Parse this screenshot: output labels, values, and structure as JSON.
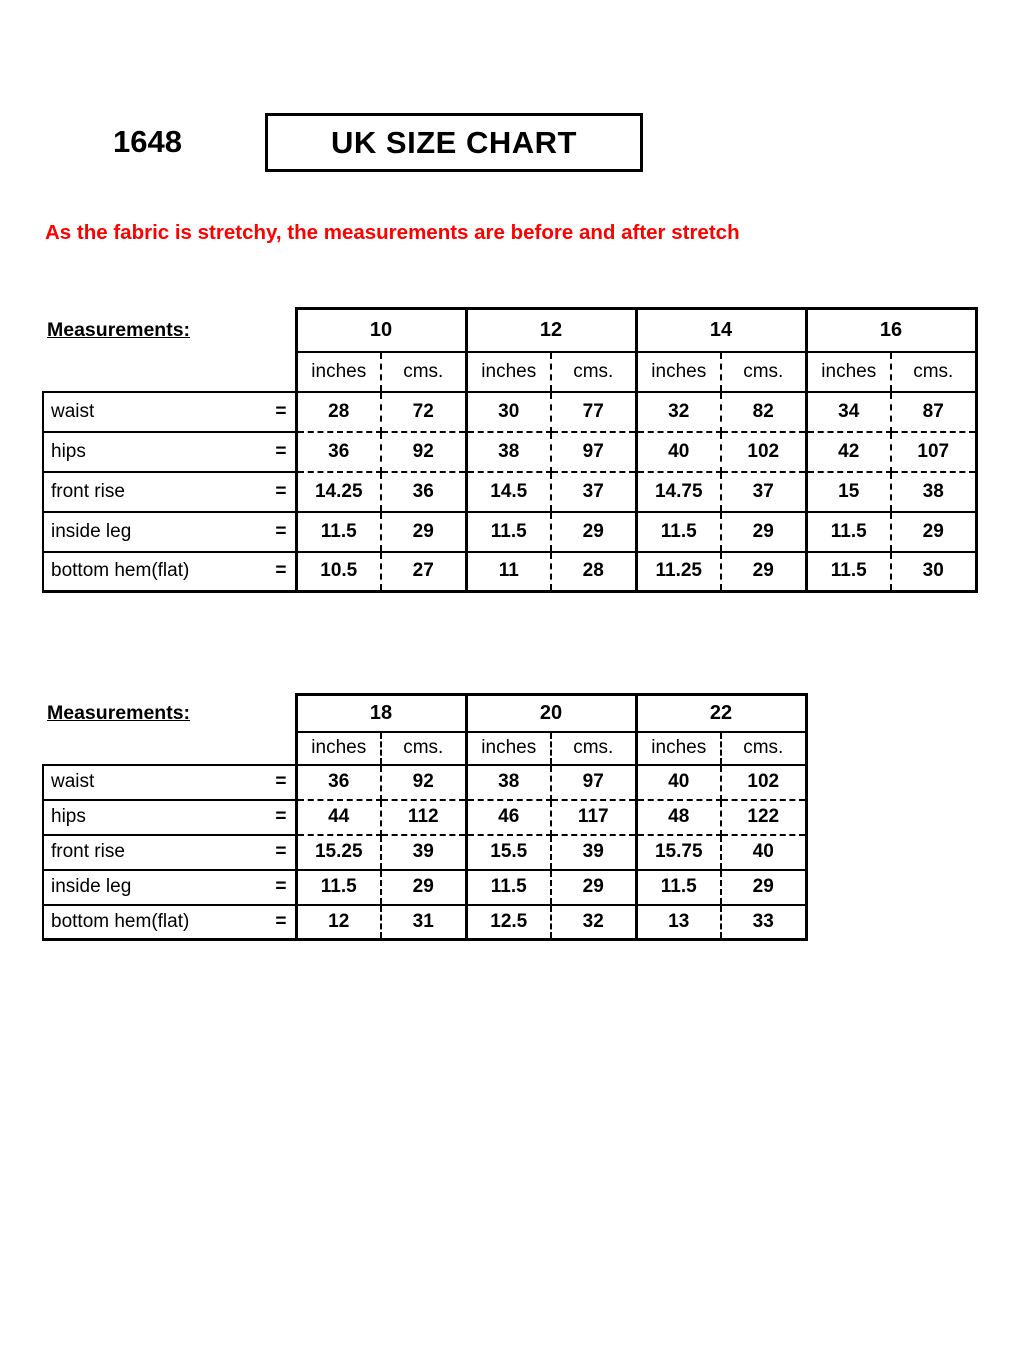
{
  "header": {
    "style_number": "1648",
    "title": "UK SIZE CHART"
  },
  "note": "As the fabric is stretchy, the measurements are before and after stretch",
  "accent_color": "#ff0000",
  "table1": {
    "label": "Measurements:",
    "sizes": [
      "10",
      "12",
      "14",
      "16"
    ],
    "unit_headers": [
      "inches",
      "cms."
    ],
    "rows": [
      {
        "label": "waist",
        "eq": "=",
        "values": [
          "28",
          "72",
          "30",
          "77",
          "32",
          "82",
          "34",
          "87"
        ]
      },
      {
        "label": "hips",
        "eq": "=",
        "values": [
          "36",
          "92",
          "38",
          "97",
          "40",
          "102",
          "42",
          "107"
        ]
      },
      {
        "label": "front rise",
        "eq": "=",
        "values": [
          "14.25",
          "36",
          "14.5",
          "37",
          "14.75",
          "37",
          "15",
          "38"
        ]
      },
      {
        "label": "inside leg",
        "eq": "=",
        "values": [
          "11.5",
          "29",
          "11.5",
          "29",
          "11.5",
          "29",
          "11.5",
          "29"
        ]
      },
      {
        "label": "bottom hem(flat)",
        "eq": "=",
        "values": [
          "10.5",
          "27",
          "11",
          "28",
          "11.25",
          "29",
          "11.5",
          "30"
        ]
      }
    ]
  },
  "table2": {
    "label": "Measurements:",
    "sizes": [
      "18",
      "20",
      "22"
    ],
    "unit_headers": [
      "inches",
      "cms."
    ],
    "rows": [
      {
        "label": "waist",
        "eq": "=",
        "values": [
          "36",
          "92",
          "38",
          "97",
          "40",
          "102"
        ]
      },
      {
        "label": "hips",
        "eq": "=",
        "values": [
          "44",
          "112",
          "46",
          "117",
          "48",
          "122"
        ]
      },
      {
        "label": "front rise",
        "eq": "=",
        "values": [
          "15.25",
          "39",
          "15.5",
          "39",
          "15.75",
          "40"
        ]
      },
      {
        "label": "inside leg",
        "eq": "=",
        "values": [
          "11.5",
          "29",
          "11.5",
          "29",
          "11.5",
          "29"
        ]
      },
      {
        "label": "bottom hem(flat)",
        "eq": "=",
        "values": [
          "12",
          "31",
          "12.5",
          "32",
          "13",
          "33"
        ]
      }
    ]
  }
}
